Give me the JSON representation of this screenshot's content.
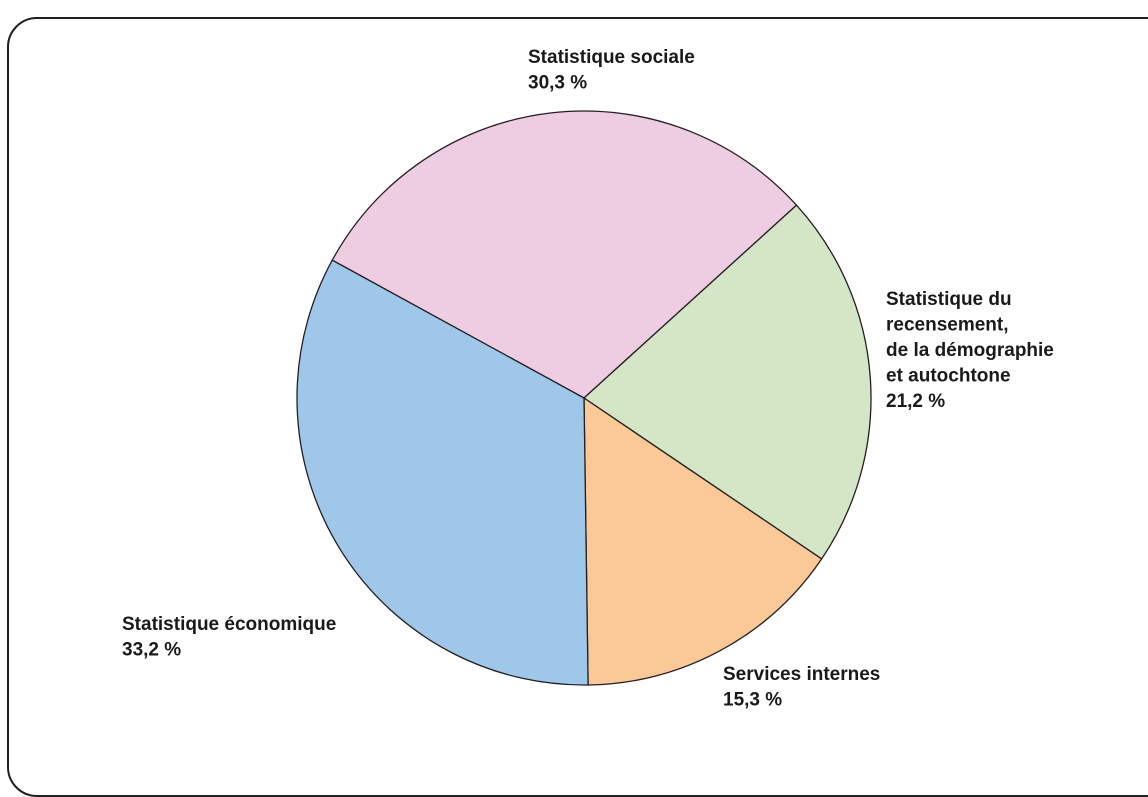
{
  "figure_title": "",
  "chart_data": {
    "type": "pie",
    "title": "",
    "unit": "%",
    "slices": [
      {
        "label": "Statistique sociale",
        "value": 30.3,
        "value_label": "30,3 %",
        "color": "#eecde2"
      },
      {
        "label": "Statistique du recensement, de la démographie et autochtone",
        "label_lines": [
          "Statistique du",
          "recensement,",
          "de la démographie",
          "et autochtone"
        ],
        "value": 21.2,
        "value_label": "21,2 %",
        "color": "#d4e6c6"
      },
      {
        "label": "Services internes",
        "value": 15.3,
        "value_label": "15,3 %",
        "color": "#fbc997"
      },
      {
        "label": "Statistique économique",
        "value": 33.2,
        "value_label": "33,2 %",
        "color": "#9fc7ea"
      }
    ],
    "start_angle_deg": -61.3,
    "direction": "clockwise",
    "legend": "none",
    "outline_color": "#231f20"
  }
}
